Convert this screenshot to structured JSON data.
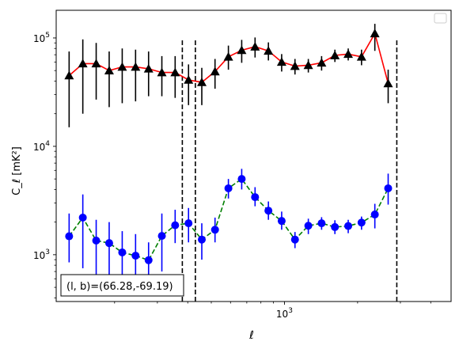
{
  "chart_data": {
    "type": "scatter",
    "xscale": "log",
    "yscale": "log",
    "xlim": [
      115,
      4850
    ],
    "ylim": [
      370,
      180000
    ],
    "x_major_ticks": [
      {
        "value": 1000,
        "label": "10^3"
      }
    ],
    "y_major_ticks": [
      {
        "value": 1000,
        "label": "10^3"
      },
      {
        "value": 10000,
        "label": "10^4"
      },
      {
        "value": 100000,
        "label": "10^5"
      }
    ],
    "xlabel": "ℓ",
    "ylabel": "C_ℓ  [mK²]",
    "legend": {
      "placement": "top-right",
      "entries": []
    },
    "vlines": [
      {
        "x": 380,
        "style": "dashed",
        "color": "#000000"
      },
      {
        "x": 430,
        "style": "dashed",
        "color": "#000000"
      },
      {
        "x": 2900,
        "style": "dashed",
        "color": "#000000"
      }
    ],
    "annotation": {
      "text": "(l, b)=(66.28,-69.19)",
      "placement": "bottom-left"
    },
    "x": [
      130,
      148,
      168,
      190,
      215,
      244,
      276,
      313,
      355,
      403,
      457,
      518,
      588,
      667,
      757,
      859,
      974,
      1105,
      1254,
      1422,
      1613,
      1830,
      2076,
      2355,
      2672,
      3031,
      3439,
      3901,
      4426
    ],
    "series": [
      {
        "color": "#000000",
        "line_color": "#ff0000",
        "linestyle": "solid",
        "marker": "triangle",
        "y": [
          45000,
          58000,
          58000,
          50000,
          54000,
          54000,
          52000,
          48000,
          48000,
          41000,
          39000,
          49000,
          67000,
          77000,
          83000,
          76000,
          60000,
          55000,
          56000,
          59000,
          69000,
          71000,
          67000,
          110000,
          38000
        ],
        "x_index": [
          0,
          1,
          2,
          3,
          4,
          5,
          6,
          7,
          8,
          9,
          10,
          11,
          12,
          13,
          14,
          15,
          16,
          17,
          18,
          19,
          20,
          21,
          22,
          23,
          24
        ],
        "err_low": [
          15000,
          20000,
          27000,
          23000,
          25000,
          26000,
          29000,
          29000,
          28000,
          24000,
          24000,
          34000,
          51000,
          59000,
          66000,
          62000,
          49000,
          46000,
          48000,
          50000,
          60000,
          62000,
          56000,
          76000,
          25000
        ],
        "err_high": [
          75000,
          97000,
          90000,
          75000,
          80000,
          78000,
          75000,
          68000,
          68000,
          57000,
          53000,
          64000,
          85000,
          96000,
          101000,
          91000,
          71000,
          64000,
          64000,
          68000,
          78000,
          80000,
          78000,
          135000,
          51000
        ]
      },
      {
        "color": "#0000ff",
        "line_color": "#008000",
        "linestyle": "dashed",
        "marker": "circle",
        "y": [
          1480,
          2200,
          1350,
          1280,
          1050,
          980,
          890,
          1490,
          1870,
          1950,
          1380,
          1700,
          4100,
          5000,
          3400,
          2550,
          2050,
          1380,
          1850,
          1950,
          1800,
          1840,
          1980,
          2350,
          4100
        ],
        "x_index": [
          0,
          1,
          2,
          3,
          4,
          5,
          6,
          7,
          8,
          9,
          10,
          11,
          12,
          13,
          14,
          15,
          16,
          17,
          18,
          19,
          20,
          21,
          22,
          23,
          24
        ],
        "err_low": [
          850,
          750,
          620,
          560,
          470,
          420,
          420,
          700,
          1280,
          1300,
          900,
          1300,
          3300,
          4000,
          2800,
          2100,
          1700,
          1150,
          1550,
          1700,
          1550,
          1580,
          1700,
          1750,
          2900
        ],
        "err_high": [
          2400,
          3600,
          2100,
          2000,
          1650,
          1550,
          1300,
          2400,
          2600,
          2700,
          1950,
          2200,
          5000,
          6200,
          4200,
          3100,
          2500,
          1620,
          2150,
          2220,
          2080,
          2100,
          2250,
          2950,
          5600
        ]
      }
    ]
  }
}
